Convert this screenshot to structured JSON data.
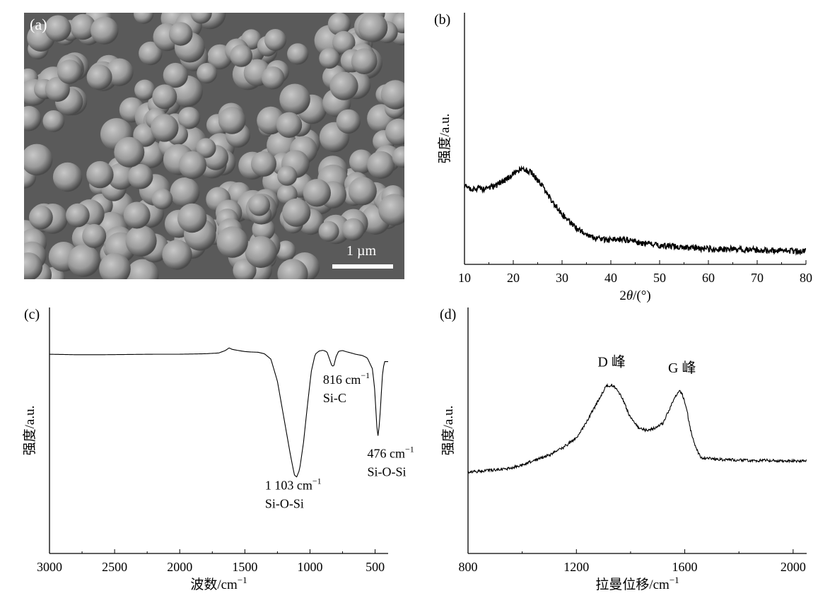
{
  "figure": {
    "panels": {
      "a": {
        "label": "(a)",
        "scale_bar_text": "1 µm"
      }
    }
  },
  "chart_data": [
    {
      "id": "b",
      "label": "(b)",
      "type": "line",
      "xlabel": "2θ/(°)",
      "xlabel_parts": [
        "2",
        "θ",
        "/(°)"
      ],
      "ylabel": "强度/a.u.",
      "xlim": [
        10,
        80
      ],
      "ylim": [
        0,
        1
      ],
      "xticks": [
        10,
        20,
        30,
        40,
        50,
        60,
        70,
        80
      ],
      "series": [
        {
          "x": [
            10,
            12,
            14,
            16,
            18,
            20,
            22,
            24,
            26,
            28,
            30,
            32,
            34,
            36,
            38,
            40,
            42,
            44,
            46,
            48,
            50,
            55,
            60,
            65,
            70,
            75,
            80
          ],
          "y": [
            0.31,
            0.3,
            0.3,
            0.31,
            0.33,
            0.36,
            0.38,
            0.36,
            0.31,
            0.25,
            0.2,
            0.16,
            0.13,
            0.11,
            0.1,
            0.095,
            0.1,
            0.095,
            0.085,
            0.08,
            0.075,
            0.068,
            0.062,
            0.06,
            0.057,
            0.055,
            0.053
          ]
        }
      ],
      "noise": 0.012
    },
    {
      "id": "c",
      "label": "(c)",
      "type": "line",
      "xlabel": "波数/cm⁻¹",
      "xlabel_parts": [
        "波数/cm",
        "−1"
      ],
      "ylabel": "强度/a.u.",
      "xlim": [
        3000,
        400
      ],
      "ylim": [
        0,
        1
      ],
      "xticks": [
        3000,
        2500,
        2000,
        1500,
        1000,
        500
      ],
      "series": [
        {
          "x": [
            3000,
            2800,
            2600,
            2400,
            2200,
            2000,
            1800,
            1700,
            1650,
            1620,
            1600,
            1560,
            1500,
            1450,
            1400,
            1350,
            1300,
            1250,
            1200,
            1150,
            1120,
            1103,
            1080,
            1050,
            1020,
            990,
            960,
            930,
            900,
            870,
            850,
            830,
            816,
            800,
            780,
            750,
            720,
            690,
            650,
            600,
            560,
            520,
            500,
            490,
            476,
            460,
            445,
            430
          ],
          "y": [
            0.81,
            0.808,
            0.808,
            0.809,
            0.81,
            0.81,
            0.812,
            0.815,
            0.825,
            0.836,
            0.83,
            0.826,
            0.821,
            0.819,
            0.818,
            0.812,
            0.79,
            0.7,
            0.55,
            0.4,
            0.32,
            0.31,
            0.34,
            0.45,
            0.6,
            0.74,
            0.81,
            0.823,
            0.826,
            0.82,
            0.79,
            0.76,
            0.765,
            0.8,
            0.822,
            0.825,
            0.82,
            0.816,
            0.81,
            0.805,
            0.795,
            0.75,
            0.65,
            0.53,
            0.47,
            0.58,
            0.72,
            0.78
          ]
        }
      ],
      "annotations": [
        {
          "line1_base": "816 cm",
          "line1_sup": "−1",
          "line2": "Si-C",
          "x": 900,
          "y": 0.69
        },
        {
          "line1_base": "1 103 cm",
          "line1_sup": "−1",
          "line2": "Si-O-Si",
          "x": 1345,
          "y": 0.26
        },
        {
          "line1_base": "476 cm",
          "line1_sup": "−1",
          "line2": "Si-O-Si",
          "x": 560,
          "y": 0.39
        }
      ],
      "noise": 0.0
    },
    {
      "id": "d",
      "label": "(d)",
      "type": "line",
      "xlabel": "拉曼位移/cm⁻¹",
      "xlabel_parts": [
        "拉曼位移/cm",
        "−1"
      ],
      "ylabel": "强度/a.u.",
      "xlim": [
        800,
        2050
      ],
      "ylim": [
        0,
        1
      ],
      "xticks": [
        800,
        1200,
        1600,
        2000
      ],
      "series": [
        {
          "x": [
            800,
            850,
            900,
            950,
            1000,
            1050,
            1100,
            1150,
            1200,
            1230,
            1260,
            1290,
            1310,
            1330,
            1350,
            1370,
            1400,
            1430,
            1460,
            1490,
            1520,
            1545,
            1565,
            1580,
            1590,
            1605,
            1620,
            1640,
            1660,
            1700,
            1750,
            1800,
            1850,
            1900,
            1950,
            2000,
            2050
          ],
          "y": [
            0.33,
            0.335,
            0.34,
            0.345,
            0.36,
            0.38,
            0.4,
            0.43,
            0.47,
            0.52,
            0.58,
            0.64,
            0.68,
            0.685,
            0.67,
            0.63,
            0.55,
            0.51,
            0.5,
            0.51,
            0.53,
            0.59,
            0.64,
            0.66,
            0.65,
            0.6,
            0.51,
            0.43,
            0.39,
            0.385,
            0.38,
            0.38,
            0.378,
            0.378,
            0.377,
            0.377,
            0.376
          ]
        }
      ],
      "annotations": [
        {
          "text": "D 峰",
          "x": 1330,
          "y": 0.76
        },
        {
          "text": "G 峰",
          "x": 1590,
          "y": 0.735
        }
      ],
      "noise": 0.006
    }
  ]
}
